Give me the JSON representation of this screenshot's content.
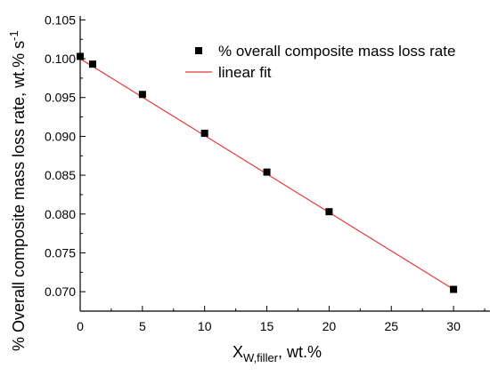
{
  "chart_data": {
    "type": "scatter",
    "xlabel": {
      "main": "X",
      "subscript": "W,filler",
      "suffix": ", wt.%"
    },
    "ylabel": {
      "main": "% Overall composite mass loss rate, wt.% s",
      "superscript": "-1"
    },
    "xlim": [
      0,
      33
    ],
    "ylim": [
      0.0675,
      0.1055
    ],
    "x_ticks": [
      0,
      5,
      10,
      15,
      20,
      25,
      30
    ],
    "x_tick_labels": [
      "0",
      "5",
      "10",
      "15",
      "20",
      "25",
      "30"
    ],
    "y_ticks": [
      0.07,
      0.075,
      0.08,
      0.085,
      0.09,
      0.095,
      0.1,
      0.105
    ],
    "y_tick_labels": [
      "0.070",
      "0.075",
      "0.080",
      "0.085",
      "0.090",
      "0.095",
      "0.100",
      "0.105"
    ],
    "grid": false,
    "legend_position": "top-right",
    "series": [
      {
        "name": "% overall composite mass loss rate",
        "kind": "scatter",
        "marker": "square",
        "color": "#000000",
        "x": [
          0,
          1,
          5,
          10,
          15,
          20,
          30
        ],
        "y": [
          0.1003,
          0.0993,
          0.0954,
          0.0904,
          0.0854,
          0.0803,
          0.0703
        ]
      },
      {
        "name": "linear fit",
        "kind": "line",
        "color": "#e8383a",
        "x": [
          0,
          30
        ],
        "y": [
          0.1,
          0.0703
        ]
      }
    ]
  }
}
